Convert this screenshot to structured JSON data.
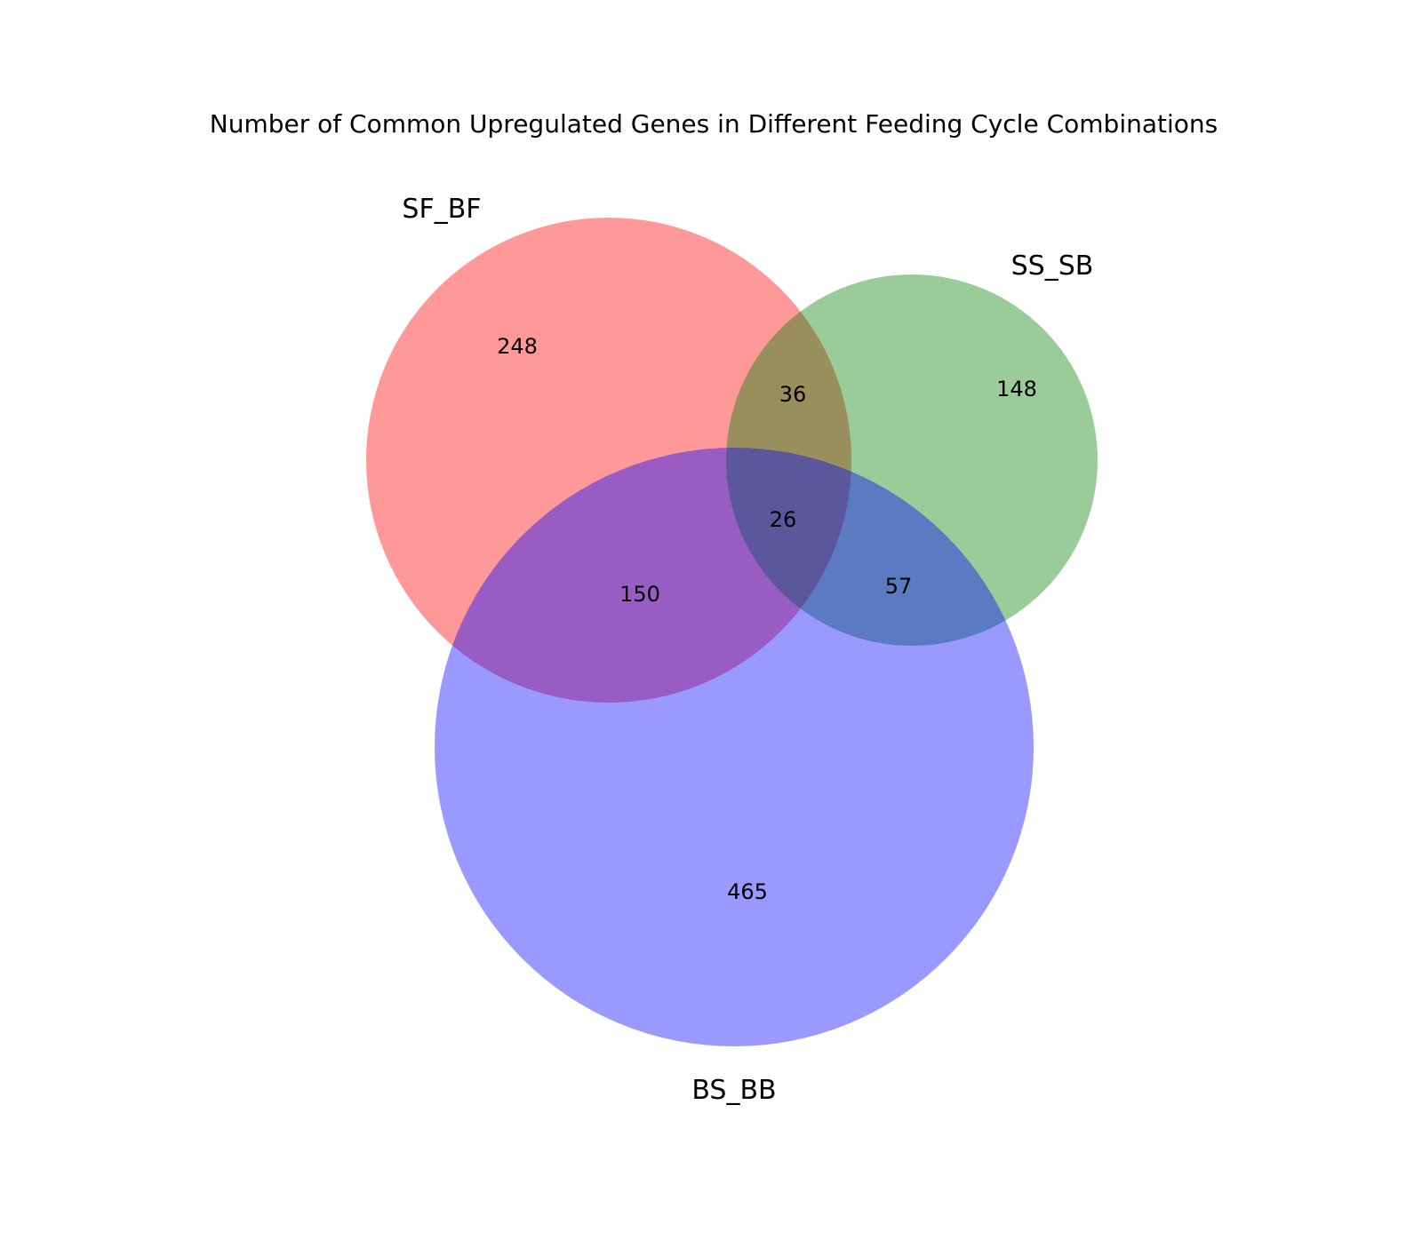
{
  "title": "Number of Common Upregulated Genes in Different Feeding Cycle Combinations",
  "sets": [
    {
      "id": "sf",
      "name": "SF_BF",
      "color": "#ff0000"
    },
    {
      "id": "ss",
      "name": "SS_SB",
      "color": "#008000"
    },
    {
      "id": "bs",
      "name": "BS_BB",
      "color": "#0000ff"
    }
  ],
  "regions": {
    "sf_only": "248",
    "ss_only": "148",
    "bs_only": "465",
    "sf_ss": "36",
    "sf_bs": "150",
    "ss_bs": "57",
    "sf_ss_bs": "26"
  }
}
